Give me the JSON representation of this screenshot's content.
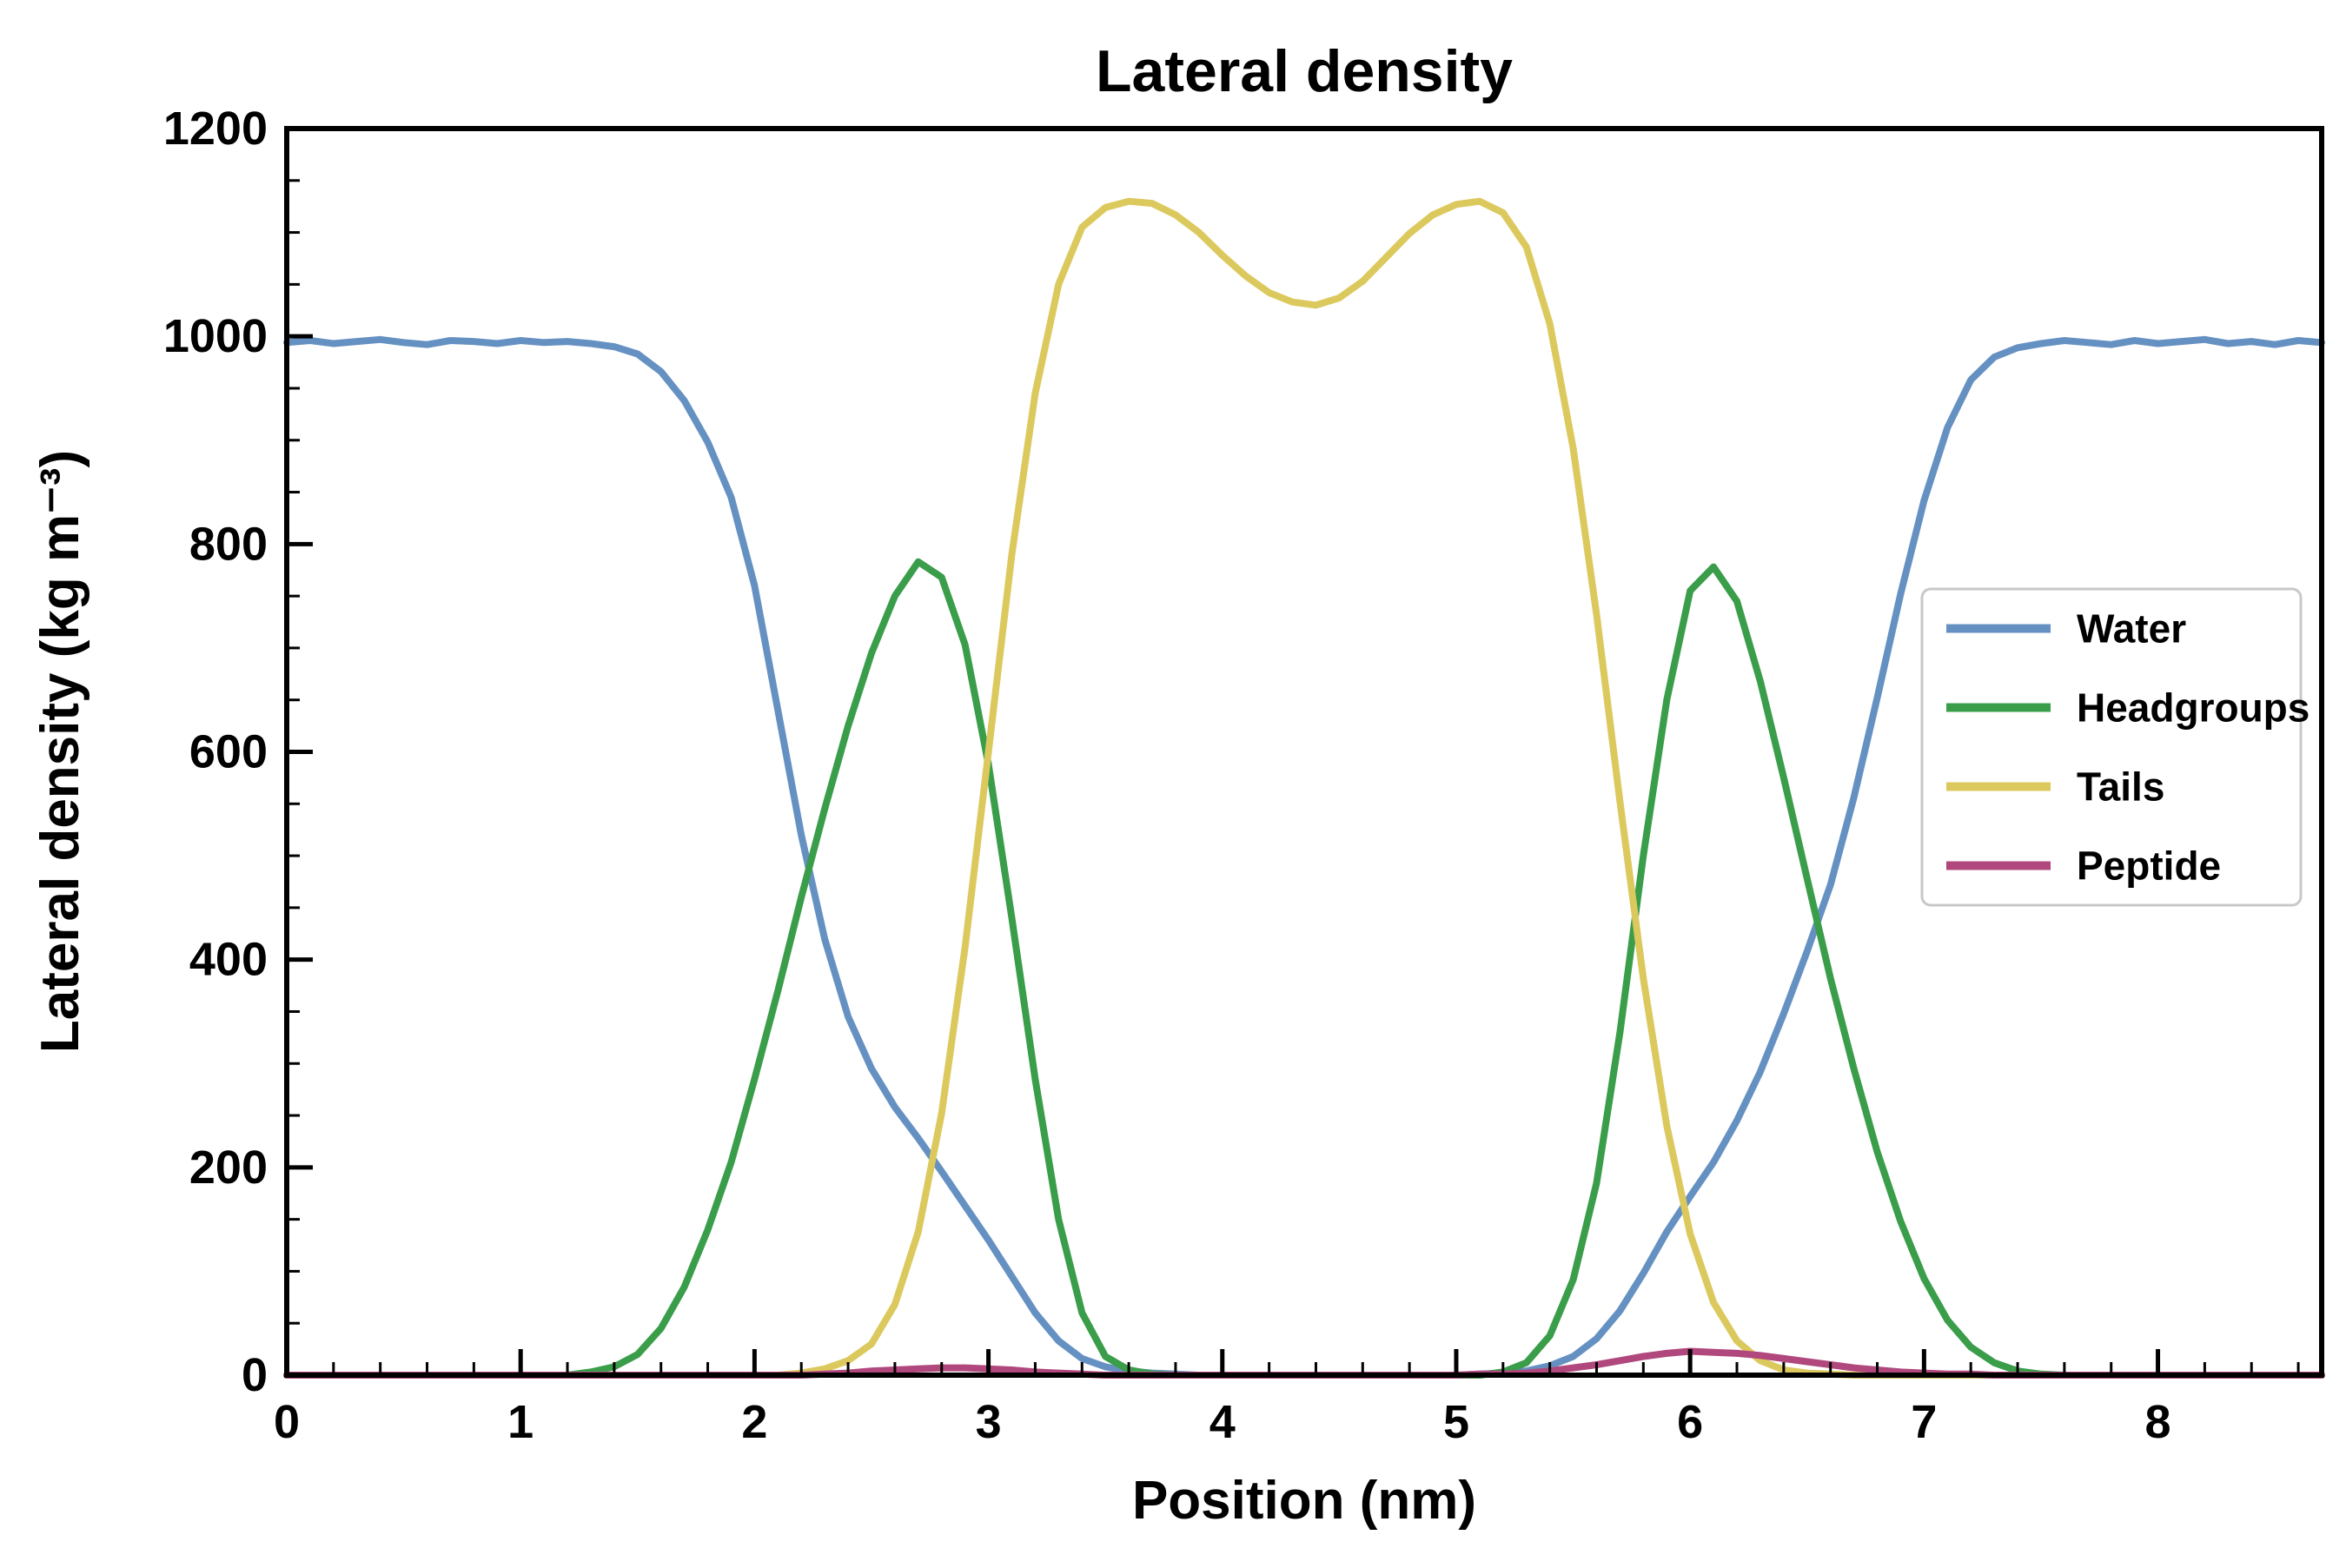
{
  "figure": {
    "title": "Lateral density",
    "xlabel": "Position (nm)",
    "ylabel": "Lateral density (kg m⁻³)"
  },
  "chart_data": {
    "type": "line",
    "title": "Lateral density",
    "xlabel": "Position (nm)",
    "ylabel": "Lateral density (kg m⁻³)",
    "xlim": [
      0,
      8.7
    ],
    "ylim": [
      0,
      1200
    ],
    "x_ticks": [
      0,
      1,
      2,
      3,
      4,
      5,
      6,
      7,
      8
    ],
    "y_ticks": [
      0,
      200,
      400,
      600,
      800,
      1000,
      1200
    ],
    "grid": false,
    "legend_position": "center right",
    "frame_color": "#000000",
    "x": [
      0,
      0.1,
      0.2,
      0.3,
      0.4,
      0.5,
      0.6,
      0.7,
      0.8,
      0.9,
      1,
      1.1,
      1.2,
      1.3,
      1.4,
      1.5,
      1.6,
      1.7,
      1.8,
      1.9,
      2,
      2.1,
      2.2,
      2.3,
      2.4,
      2.5,
      2.6,
      2.7,
      2.8,
      2.9,
      3,
      3.1,
      3.2,
      3.3,
      3.4,
      3.5,
      3.6,
      3.7,
      3.8,
      3.9,
      4,
      4.1,
      4.2,
      4.3,
      4.4,
      4.5,
      4.6,
      4.7,
      4.8,
      4.9,
      5,
      5.1,
      5.2,
      5.3,
      5.4,
      5.5,
      5.6,
      5.7,
      5.8,
      5.9,
      6,
      6.1,
      6.2,
      6.3,
      6.4,
      6.5,
      6.6,
      6.7,
      6.8,
      6.9,
      7,
      7.1,
      7.2,
      7.3,
      7.4,
      7.5,
      7.6,
      7.7,
      7.8,
      7.9,
      8,
      8.1,
      8.2,
      8.3,
      8.4,
      8.5,
      8.6,
      8.7
    ],
    "series": [
      {
        "name": "Water",
        "color": "#6591c2",
        "values": [
          994,
          996,
          993,
          995,
          997,
          994,
          992,
          996,
          995,
          993,
          996,
          994,
          995,
          993,
          990,
          983,
          966,
          938,
          898,
          845,
          760,
          640,
          520,
          420,
          345,
          295,
          258,
          228,
          196,
          163,
          130,
          95,
          60,
          33,
          16,
          8,
          4,
          2,
          1,
          0,
          0,
          0,
          0,
          0,
          0,
          0,
          0,
          0,
          0,
          0,
          0,
          1,
          2,
          4,
          9,
          18,
          35,
          62,
          98,
          138,
          172,
          205,
          245,
          292,
          348,
          408,
          472,
          556,
          652,
          752,
          842,
          912,
          958,
          980,
          989,
          993,
          996,
          994,
          992,
          996,
          993,
          995,
          997,
          993,
          995,
          992,
          996,
          994
        ]
      },
      {
        "name": "Headgroups",
        "color": "#3a9d4a",
        "values": [
          0,
          0,
          0,
          0,
          0,
          0,
          0,
          0,
          0,
          0,
          0,
          0,
          0,
          3,
          8,
          20,
          45,
          85,
          140,
          205,
          285,
          370,
          460,
          545,
          625,
          695,
          750,
          783,
          768,
          703,
          588,
          440,
          285,
          150,
          60,
          18,
          5,
          1,
          0,
          0,
          0,
          0,
          0,
          0,
          0,
          0,
          0,
          0,
          0,
          0,
          0,
          0,
          3,
          12,
          38,
          92,
          185,
          330,
          500,
          650,
          755,
          778,
          745,
          668,
          575,
          478,
          382,
          295,
          215,
          148,
          93,
          53,
          27,
          12,
          4,
          1,
          0,
          0,
          0,
          0,
          0,
          0,
          0,
          0,
          0,
          0,
          0,
          0
        ]
      },
      {
        "name": "Tails",
        "color": "#dcc95e",
        "values": [
          0,
          0,
          0,
          0,
          0,
          0,
          0,
          0,
          0,
          0,
          0,
          0,
          0,
          0,
          0,
          0,
          0,
          0,
          0,
          0,
          0,
          0,
          2,
          6,
          14,
          30,
          68,
          138,
          252,
          412,
          600,
          790,
          945,
          1050,
          1105,
          1124,
          1130,
          1128,
          1117,
          1100,
          1078,
          1058,
          1042,
          1033,
          1030,
          1037,
          1053,
          1076,
          1099,
          1117,
          1127,
          1130,
          1119,
          1086,
          1012,
          892,
          732,
          552,
          382,
          240,
          136,
          70,
          33,
          14,
          5,
          2,
          1,
          0,
          0,
          0,
          0,
          0,
          0,
          0,
          0,
          0,
          0,
          0,
          0,
          0,
          0,
          0,
          0,
          0,
          0,
          0,
          0,
          0
        ]
      },
      {
        "name": "Peptide",
        "color": "#b0477d",
        "values": [
          0,
          0,
          0,
          0,
          0,
          0,
          0,
          0,
          0,
          0,
          0,
          0,
          0,
          0,
          0,
          0,
          0,
          0,
          0,
          0,
          0,
          0,
          0,
          1,
          2,
          4,
          5,
          6,
          7,
          7,
          6,
          5,
          3,
          2,
          1,
          0,
          0,
          0,
          0,
          0,
          0,
          0,
          0,
          0,
          0,
          0,
          0,
          0,
          0,
          0,
          0,
          1,
          1,
          2,
          4,
          7,
          10,
          14,
          18,
          21,
          23,
          22,
          21,
          19,
          16,
          13,
          10,
          7,
          5,
          3,
          2,
          1,
          1,
          0,
          0,
          0,
          0,
          0,
          0,
          0,
          0,
          0,
          0,
          0,
          0,
          0,
          0,
          0
        ]
      }
    ]
  }
}
